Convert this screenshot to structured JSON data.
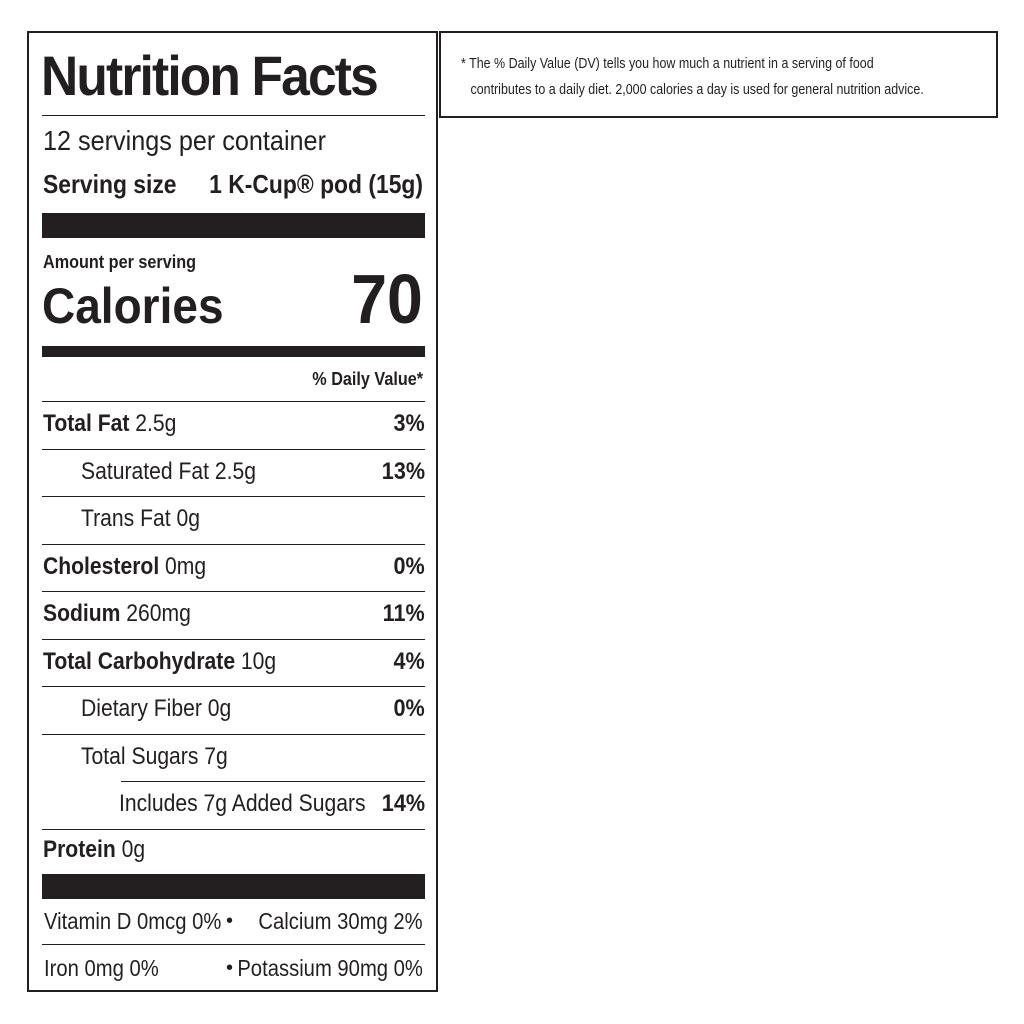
{
  "label": {
    "title": "Nutrition Facts",
    "servings_per_container": "12 servings per container",
    "serving_size_label": "Serving size",
    "serving_size_value": "1 K-Cup® pod (15g)",
    "amount_per_serving": "Amount per serving",
    "calories_label": "Calories",
    "calories_value": "70",
    "daily_value_header": "% Daily Value*",
    "nutrients": [
      {
        "name": "Total Fat",
        "amount": "2.5g",
        "dv": "3%"
      },
      {
        "name": "Saturated Fat",
        "amount": "2.5g",
        "dv": "13%"
      },
      {
        "name": "Trans Fat",
        "amount": "0g",
        "dv": ""
      },
      {
        "name": "Cholesterol",
        "amount": "0mg",
        "dv": "0%"
      },
      {
        "name": "Sodium",
        "amount": "260mg",
        "dv": "11%"
      },
      {
        "name": "Total Carbohydrate",
        "amount": "10g",
        "dv": "4%"
      },
      {
        "name": "Dietary Fiber",
        "amount": "0g",
        "dv": "0%"
      },
      {
        "name": "Total Sugars",
        "amount": "7g",
        "dv": ""
      },
      {
        "name": "Includes 7g Added Sugars",
        "amount": "",
        "dv": "14%"
      },
      {
        "name": "Protein",
        "amount": "0g",
        "dv": ""
      }
    ],
    "vitamins": [
      {
        "text": "Vitamin D 0mcg 0%"
      },
      {
        "text": "Calcium 30mg 2%"
      },
      {
        "text": "Iron 0mg 0%"
      },
      {
        "text": "Potassium 90mg 0%"
      }
    ],
    "separator": "•"
  },
  "footnote": {
    "line1": "* The % Daily Value (DV) tells you how much a nutrient in a serving of food",
    "line2": "contributes to a daily diet. 2,000 calories a day is used for general nutrition advice."
  }
}
